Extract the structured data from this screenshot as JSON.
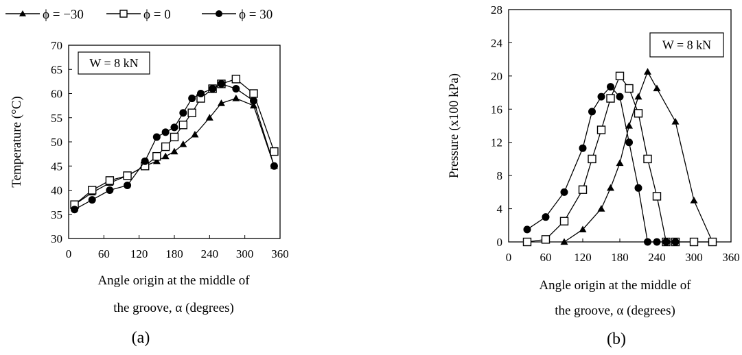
{
  "legend": [
    {
      "symbol": "triangle",
      "label": "ϕ = −30"
    },
    {
      "symbol": "square-open",
      "label": "ϕ = 0"
    },
    {
      "symbol": "circle",
      "label": "ϕ = 30"
    }
  ],
  "chart_data": [
    {
      "type": "line",
      "caption": "(a)",
      "annotation": "W = 8 kN",
      "ylabel": "Temperature (°C)",
      "xlabel_lines": [
        "Angle origin at the middle of",
        "the groove, α (degrees)"
      ],
      "xlim": [
        0,
        360
      ],
      "ylim": [
        30,
        70
      ],
      "xticks": [
        0,
        60,
        120,
        180,
        240,
        300,
        360
      ],
      "yticks": [
        30,
        35,
        40,
        45,
        50,
        55,
        60,
        65,
        70
      ],
      "grid": false,
      "series": [
        {
          "label": "ϕ = −30",
          "symbol": "triangle",
          "x": [
            10,
            40,
            70,
            100,
            130,
            150,
            165,
            180,
            195,
            215,
            240,
            260,
            285,
            315,
            350
          ],
          "y": [
            37,
            39.5,
            41.5,
            43,
            45,
            46,
            47,
            48,
            49.5,
            51.5,
            55,
            58,
            59,
            57.5,
            45
          ]
        },
        {
          "label": "ϕ = 0",
          "symbol": "square-open",
          "x": [
            10,
            40,
            70,
            100,
            130,
            150,
            165,
            180,
            195,
            210,
            225,
            245,
            260,
            285,
            315,
            350
          ],
          "y": [
            37,
            40,
            42,
            43,
            45,
            47,
            49,
            51,
            53.5,
            56,
            59,
            61,
            62,
            63,
            60,
            48
          ]
        },
        {
          "label": "ϕ = 30",
          "symbol": "circle",
          "x": [
            10,
            40,
            70,
            100,
            130,
            150,
            165,
            180,
            195,
            210,
            225,
            245,
            260,
            285,
            315,
            350
          ],
          "y": [
            36,
            38,
            40,
            41,
            46,
            51,
            52,
            53,
            56,
            59,
            60,
            61,
            62,
            61,
            58.5,
            45
          ]
        }
      ]
    },
    {
      "type": "line",
      "caption": "(b)",
      "annotation": "W = 8 kN",
      "ylabel": "Pressure (x100 kPa)",
      "xlabel_lines": [
        "Angle origin at the middle of",
        "the groove, α (degrees)"
      ],
      "xlim": [
        0,
        360
      ],
      "ylim": [
        0,
        28
      ],
      "xticks": [
        0,
        60,
        120,
        180,
        240,
        300,
        360
      ],
      "yticks": [
        0,
        4,
        8,
        12,
        16,
        20,
        24,
        28
      ],
      "grid": false,
      "series": [
        {
          "label": "ϕ = −30",
          "symbol": "triangle",
          "x": [
            90,
            120,
            150,
            165,
            180,
            195,
            210,
            225,
            240,
            270,
            300,
            330
          ],
          "y": [
            0,
            1.5,
            4,
            6.5,
            9.5,
            14,
            17.5,
            20.5,
            18.5,
            14.5,
            5,
            0
          ]
        },
        {
          "label": "ϕ = 0",
          "symbol": "square-open",
          "x": [
            30,
            60,
            90,
            120,
            135,
            150,
            165,
            180,
            195,
            210,
            225,
            240,
            255,
            270,
            300,
            330
          ],
          "y": [
            0,
            0.3,
            2.5,
            6.3,
            10,
            13.5,
            17.3,
            20,
            18.5,
            15.5,
            10,
            5.5,
            0,
            0,
            0,
            0
          ]
        },
        {
          "label": "ϕ = 30",
          "symbol": "circle",
          "x": [
            30,
            60,
            90,
            120,
            135,
            150,
            165,
            180,
            195,
            210,
            225,
            240,
            255,
            270
          ],
          "y": [
            1.5,
            3,
            6,
            11.3,
            15.7,
            17.5,
            18.7,
            17.5,
            12,
            6.5,
            0,
            0,
            0,
            0
          ]
        }
      ]
    }
  ]
}
